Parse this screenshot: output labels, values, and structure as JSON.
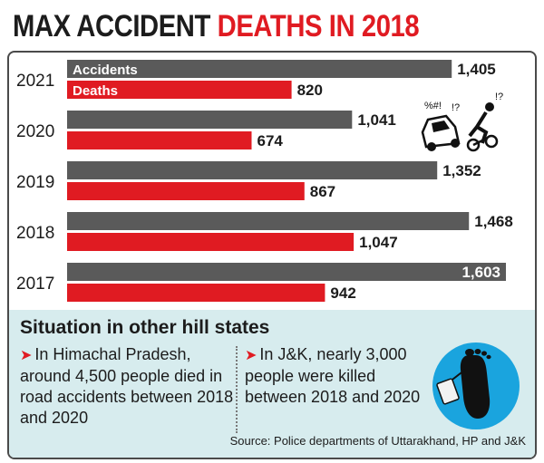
{
  "title": {
    "part1": "MAX ACCIDENT ",
    "part2": "DEATHS IN 2018"
  },
  "chart_data": {
    "type": "bar",
    "orientation": "horizontal",
    "categories": [
      "2021",
      "2020",
      "2019",
      "2018",
      "2017"
    ],
    "series": [
      {
        "name": "Accidents",
        "color": "#5a5a5a",
        "values": [
          1405,
          1041,
          1352,
          1468,
          1603
        ]
      },
      {
        "name": "Deaths",
        "color": "#e01b22",
        "values": [
          820,
          674,
          867,
          1047,
          942
        ]
      }
    ],
    "value_labels": {
      "Accidents": [
        "1,405",
        "1,041",
        "1,352",
        "1,468",
        "1,603"
      ],
      "Deaths": [
        "820",
        "674",
        "867",
        "1,047",
        "942"
      ]
    },
    "xlim": [
      0,
      1603
    ],
    "grid": false
  },
  "panel": {
    "title": "Situation in other hill states",
    "note1": "In Himachal Pradesh, around 4,500 people died in road accidents between 2018 and 2020",
    "note2": "In J&K, nearly 3,000 people were killed between 2018 and 2020",
    "source": "Source: Police departments of Uttarakhand, HP and J&K"
  },
  "icons": [
    "car-crash-icon",
    "toe-tag-foot-icon",
    "arrow-icon"
  ],
  "colors": {
    "accent_red": "#e01b22",
    "bar_gray": "#5a5a5a",
    "panel_bg": "#d7ecee",
    "icon_blue": "#1aa4de"
  }
}
